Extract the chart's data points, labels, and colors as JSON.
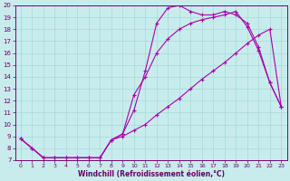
{
  "xlabel": "Windchill (Refroidissement éolien,°C)",
  "bg_color": "#c8ecec",
  "grid_color": "#a8d8d8",
  "line_color": "#aa00aa",
  "xlim": [
    -0.5,
    23.5
  ],
  "ylim": [
    7,
    20
  ],
  "xticks": [
    0,
    1,
    2,
    3,
    4,
    5,
    6,
    7,
    8,
    9,
    10,
    11,
    12,
    13,
    14,
    15,
    16,
    17,
    18,
    19,
    20,
    21,
    22,
    23
  ],
  "yticks": [
    7,
    8,
    9,
    10,
    11,
    12,
    13,
    14,
    15,
    16,
    17,
    18,
    19,
    20
  ],
  "line1_x": [
    0,
    1,
    2,
    3,
    4,
    5,
    6,
    7,
    8,
    9,
    10,
    11,
    12,
    13,
    14,
    15,
    16,
    17,
    18,
    19,
    20,
    21,
    22,
    23
  ],
  "line1_y": [
    8.8,
    8.0,
    7.2,
    7.2,
    7.2,
    7.2,
    7.2,
    7.2,
    8.7,
    9.2,
    11.2,
    14.5,
    18.5,
    19.8,
    20.0,
    19.5,
    19.2,
    19.2,
    19.5,
    19.2,
    18.5,
    16.5,
    13.5,
    11.5
  ],
  "line2_x": [
    0,
    1,
    2,
    3,
    4,
    5,
    6,
    7,
    8,
    9,
    10,
    11,
    12,
    13,
    14,
    15,
    16,
    17,
    18,
    19,
    20,
    21,
    22,
    23
  ],
  "line2_y": [
    8.8,
    8.0,
    7.2,
    7.2,
    7.2,
    7.2,
    7.2,
    7.2,
    8.7,
    9.2,
    12.5,
    14.0,
    16.0,
    17.2,
    18.0,
    18.5,
    18.8,
    19.0,
    19.2,
    19.5,
    18.2,
    16.2,
    13.5,
    11.5
  ],
  "line3_x": [
    0,
    1,
    2,
    3,
    4,
    5,
    6,
    7,
    8,
    9,
    10,
    11,
    12,
    13,
    14,
    15,
    16,
    17,
    18,
    19,
    20,
    21,
    22,
    23
  ],
  "line3_y": [
    8.8,
    8.0,
    7.2,
    7.2,
    7.2,
    7.2,
    7.2,
    7.2,
    8.7,
    9.0,
    9.5,
    10.0,
    10.8,
    11.5,
    12.2,
    13.0,
    13.8,
    14.5,
    15.2,
    16.0,
    16.8,
    17.5,
    18.0,
    11.5
  ]
}
